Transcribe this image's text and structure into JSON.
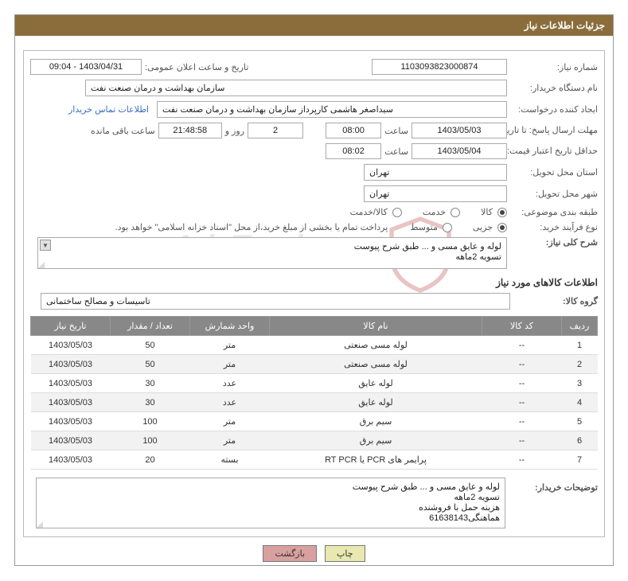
{
  "header": {
    "title": "جزئیات اطلاعات نیاز"
  },
  "fields": {
    "need_number_label": "شماره نیاز:",
    "need_number": "1103093823000874",
    "announce_label": "تاریخ و ساعت اعلان عمومی:",
    "announce_value": "1403/04/31 - 09:04",
    "buyer_org_label": "نام دستگاه خریدار:",
    "buyer_org": "سازمان بهداشت و درمان صنعت نفت",
    "requester_label": "ایجاد کننده درخواست:",
    "requester": "سیداصغر هاشمی کارپرداز سازمان بهداشت و درمان صنعت نفت",
    "contact_link": "اطلاعات تماس خریدار",
    "response_deadline_label": "مهلت ارسال پاسخ: تا تاریخ:",
    "response_date": "1403/05/03",
    "time_label": "ساعت",
    "response_time": "08:00",
    "days_count": "2",
    "days_and": "روز و",
    "countdown": "21:48:58",
    "remaining_label": "ساعت باقی مانده",
    "validity_label": "حداقل تاریخ اعتبار قیمت: تا تاریخ:",
    "validity_date": "1403/05/04",
    "validity_time": "08:02",
    "province_label": "استان محل تحویل:",
    "province": "تهران",
    "city_label": "شهر محل تحویل:",
    "city": "تهران",
    "category_label": "طبقه بندی موضوعی:",
    "cat_goods": "کالا",
    "cat_service": "خدمت",
    "cat_goods_service": "کالا/خدمت",
    "process_label": "نوع فرآیند خرید:",
    "process_partial": "جزیی",
    "process_medium": "متوسط",
    "treasury_note": "پرداخت تمام یا بخشی از مبلغ خرید،از محل \"اسناد خزانه اسلامی\" خواهد بود.",
    "summary_label": "شرح کلی نیاز:",
    "summary_line1": "لوله و عایق مسی و ... طبق شرح پیوست",
    "summary_line2": "تسویه 2ماهه",
    "goods_info_title": "اطلاعات کالاهای مورد نیاز",
    "group_label": "گروه کالا:",
    "group_value": "تاسیسات و مصالح ساختمانی",
    "buyer_notes_label": "توضیحات خریدار:",
    "buyer_notes_l1": "لوله و عایق مسی و ... طبق شرح پیوست",
    "buyer_notes_l2": "تسویه 2ماهه",
    "buyer_notes_l3": "هزینه حمل با فروشنده",
    "buyer_notes_l4": "هماهنگی61638143"
  },
  "table": {
    "headers": {
      "row": "ردیف",
      "code": "کد کالا",
      "name": "نام کالا",
      "unit": "واحد شمارش",
      "qty": "تعداد / مقدار",
      "date": "تاریخ نیاز"
    },
    "rows": [
      {
        "n": "1",
        "code": "--",
        "name": "لوله مسی صنعتی",
        "unit": "متر",
        "qty": "50",
        "date": "1403/05/03"
      },
      {
        "n": "2",
        "code": "--",
        "name": "لوله مسی صنعتی",
        "unit": "متر",
        "qty": "50",
        "date": "1403/05/03"
      },
      {
        "n": "3",
        "code": "--",
        "name": "لوله عایق",
        "unit": "عدد",
        "qty": "30",
        "date": "1403/05/03"
      },
      {
        "n": "4",
        "code": "--",
        "name": "لوله عایق",
        "unit": "عدد",
        "qty": "30",
        "date": "1403/05/03"
      },
      {
        "n": "5",
        "code": "--",
        "name": "سیم برق",
        "unit": "متر",
        "qty": "100",
        "date": "1403/05/03"
      },
      {
        "n": "6",
        "code": "--",
        "name": "سیم برق",
        "unit": "متر",
        "qty": "100",
        "date": "1403/05/03"
      },
      {
        "n": "7",
        "code": "--",
        "name": "پرایمر های PCR یا RT PCR",
        "unit": "بسته",
        "qty": "20",
        "date": "1403/05/03"
      }
    ]
  },
  "buttons": {
    "print": "چاپ",
    "back": "بازگشت"
  },
  "watermark": {
    "text": "AriaTender.net"
  },
  "colors": {
    "header_bg": "#8a6d3b",
    "header_text": "#ffffff",
    "border": "#aaaaaa",
    "link": "#3a6fc4",
    "table_header_bg": "#888888",
    "table_stripe": "#f2f2f2"
  }
}
